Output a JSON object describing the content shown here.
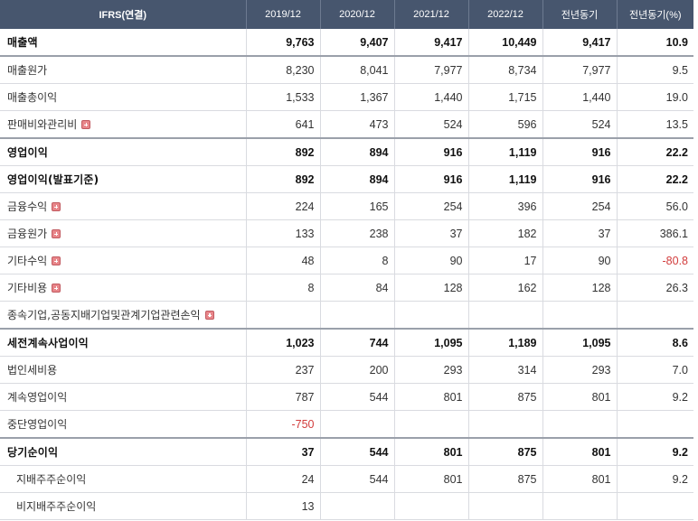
{
  "header": {
    "label": "IFRS(연결)",
    "periods": [
      "2019/12",
      "2020/12",
      "2021/12",
      "2022/12",
      "전년동기",
      "전년동기(%)"
    ]
  },
  "rows": [
    {
      "label": "매출액",
      "expand": false,
      "values": [
        "9,763",
        "9,407",
        "9,417",
        "10,449",
        "9,417",
        "10.9"
      ]
    },
    {
      "label": "매출원가",
      "expand": false,
      "values": [
        "8,230",
        "8,041",
        "7,977",
        "8,734",
        "7,977",
        "9.5"
      ]
    },
    {
      "label": "매출총이익",
      "expand": false,
      "values": [
        "1,533",
        "1,367",
        "1,440",
        "1,715",
        "1,440",
        "19.0"
      ]
    },
    {
      "label": "판매비와관리비",
      "expand": true,
      "values": [
        "641",
        "473",
        "524",
        "596",
        "524",
        "13.5"
      ]
    },
    {
      "label": "영업이익",
      "expand": false,
      "values": [
        "892",
        "894",
        "916",
        "1,119",
        "916",
        "22.2"
      ]
    },
    {
      "label": "영업이익(발표기준)",
      "expand": false,
      "values": [
        "892",
        "894",
        "916",
        "1,119",
        "916",
        "22.2"
      ]
    },
    {
      "label": "금융수익",
      "expand": true,
      "values": [
        "224",
        "165",
        "254",
        "396",
        "254",
        "56.0"
      ]
    },
    {
      "label": "금융원가",
      "expand": true,
      "values": [
        "133",
        "238",
        "37",
        "182",
        "37",
        "386.1"
      ]
    },
    {
      "label": "기타수익",
      "expand": true,
      "values": [
        "48",
        "8",
        "90",
        "17",
        "90",
        "-80.8"
      ]
    },
    {
      "label": "기타비용",
      "expand": true,
      "values": [
        "8",
        "84",
        "128",
        "162",
        "128",
        "26.3"
      ]
    },
    {
      "label": "종속기업,공동지배기업및관계기업관련손익",
      "expand": true,
      "values": [
        "",
        "",
        "",
        "",
        "",
        ""
      ]
    },
    {
      "label": "세전계속사업이익",
      "expand": false,
      "values": [
        "1,023",
        "744",
        "1,095",
        "1,189",
        "1,095",
        "8.6"
      ]
    },
    {
      "label": "법인세비용",
      "expand": false,
      "values": [
        "237",
        "200",
        "293",
        "314",
        "293",
        "7.0"
      ]
    },
    {
      "label": "계속영업이익",
      "expand": false,
      "values": [
        "787",
        "544",
        "801",
        "875",
        "801",
        "9.2"
      ]
    },
    {
      "label": "중단영업이익",
      "expand": false,
      "values": [
        "-750",
        "",
        "",
        "",
        "",
        ""
      ]
    },
    {
      "label": "당기순이익",
      "expand": false,
      "values": [
        "37",
        "544",
        "801",
        "875",
        "801",
        "9.2"
      ]
    },
    {
      "label": "지배주주순이익",
      "expand": false,
      "values": [
        "24",
        "544",
        "801",
        "875",
        "801",
        "9.2"
      ]
    },
    {
      "label": "비지배주주순이익",
      "expand": false,
      "values": [
        "13",
        "",
        "",
        "",
        "",
        ""
      ]
    }
  ],
  "colors": {
    "header_bg": "#47566e",
    "negative": "#d23c3c",
    "expand_icon": "#e8868a"
  }
}
